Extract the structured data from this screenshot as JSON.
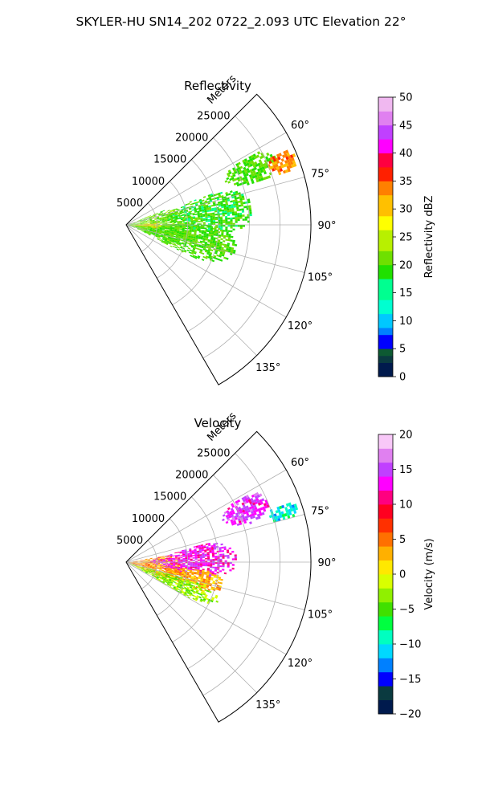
{
  "figure_title": "SKYLER-HU  SN14_202  0722_2.093 UTC Elevation 22°",
  "colors": {
    "background": "#ffffff",
    "grid": "#b0b0b0",
    "frame": "#000000"
  },
  "chart_data": [
    {
      "type": "heatmap",
      "subplot": "polar-sector",
      "title": "Reflectivity",
      "radial_label": "Meters",
      "radial_ticks": [
        "5000",
        "10000",
        "15000",
        "20000",
        "25000"
      ],
      "radial_range": [
        0,
        30000
      ],
      "angular_range_deg": [
        45,
        150
      ],
      "angular_ticks": [
        "60°",
        "75°",
        "90°",
        "105°",
        "120°",
        "135°"
      ],
      "grid": true,
      "colorbar": {
        "label": "Reflectivity dBZ",
        "range": [
          0,
          50
        ],
        "ticks": [
          "0",
          "5",
          "10",
          "15",
          "20",
          "25",
          "30",
          "35",
          "40",
          "45",
          "50"
        ]
      },
      "echo_regions": [
        {
          "az": 90,
          "r": 5000,
          "d_az": 22,
          "d_r": 6500,
          "value": 21
        },
        {
          "az": 102,
          "r": 9000,
          "d_az": 14,
          "d_r": 9000,
          "value": 20
        },
        {
          "az": 82,
          "r": 13500,
          "d_az": 13,
          "d_r": 7000,
          "value": 19
        },
        {
          "az": 66,
          "r": 22000,
          "d_az": 6,
          "d_r": 4500,
          "value": 20
        },
        {
          "az": 68,
          "r": 27000,
          "d_az": 4,
          "d_r": 2500,
          "value": 33
        },
        {
          "az": 91,
          "r": 3000,
          "d_az": 5,
          "d_r": 2500,
          "value": 29
        }
      ]
    },
    {
      "type": "heatmap",
      "subplot": "polar-sector",
      "title": "Velocity",
      "radial_label": "Meters",
      "radial_ticks": [
        "5000",
        "10000",
        "15000",
        "20000",
        "25000"
      ],
      "radial_range": [
        0,
        30000
      ],
      "angular_range_deg": [
        45,
        150
      ],
      "angular_ticks": [
        "60°",
        "75°",
        "90°",
        "105°",
        "120°",
        "135°"
      ],
      "grid": true,
      "colorbar": {
        "label": "Velocity (m/s)",
        "range": [
          -20,
          20
        ],
        "ticks": [
          "−20",
          "−15",
          "−10",
          "−5",
          "0",
          "5",
          "10",
          "15",
          "20"
        ]
      },
      "echo_regions": [
        {
          "az": 98,
          "r": 4500,
          "d_az": 18,
          "d_r": 5000,
          "value": 4
        },
        {
          "az": 88,
          "r": 11000,
          "d_az": 12,
          "d_r": 7000,
          "value": 13
        },
        {
          "az": 103,
          "r": 11000,
          "d_az": 8,
          "d_r": 5000,
          "value": 3
        },
        {
          "az": 66,
          "r": 21000,
          "d_az": 6,
          "d_r": 4000,
          "value": 14
        },
        {
          "az": 72,
          "r": 26500,
          "d_az": 3,
          "d_r": 2500,
          "value": -10
        },
        {
          "az": 112,
          "r": 8000,
          "d_az": 8,
          "d_r": 8000,
          "value": -3
        }
      ]
    }
  ]
}
